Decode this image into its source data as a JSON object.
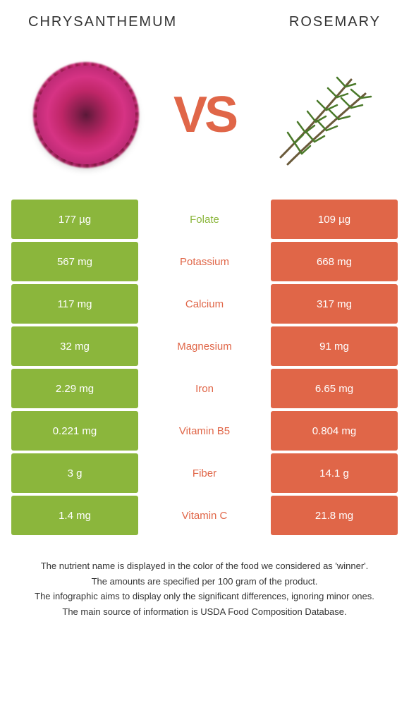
{
  "left_food": "Chrysanthemum",
  "right_food": "Rosemary",
  "vs_label": "VS",
  "colors": {
    "left": "#8bb63c",
    "right": "#e06648"
  },
  "rows": [
    {
      "nutrient": "Folate",
      "left": "177 µg",
      "right": "109 µg",
      "winner": "left"
    },
    {
      "nutrient": "Potassium",
      "left": "567 mg",
      "right": "668 mg",
      "winner": "right"
    },
    {
      "nutrient": "Calcium",
      "left": "117 mg",
      "right": "317 mg",
      "winner": "right"
    },
    {
      "nutrient": "Magnesium",
      "left": "32 mg",
      "right": "91 mg",
      "winner": "right"
    },
    {
      "nutrient": "Iron",
      "left": "2.29 mg",
      "right": "6.65 mg",
      "winner": "right"
    },
    {
      "nutrient": "Vitamin B5",
      "left": "0.221 mg",
      "right": "0.804 mg",
      "winner": "right"
    },
    {
      "nutrient": "Fiber",
      "left": "3 g",
      "right": "14.1 g",
      "winner": "right"
    },
    {
      "nutrient": "Vitamin C",
      "left": "1.4 mg",
      "right": "21.8 mg",
      "winner": "right"
    }
  ],
  "footer_lines": [
    "The nutrient name is displayed in the color of the food we considered as 'winner'.",
    "The amounts are specified per 100 gram of the product.",
    "The infographic aims to display only the significant differences, ignoring minor ones.",
    "The main source of information is USDA Food Composition Database."
  ]
}
